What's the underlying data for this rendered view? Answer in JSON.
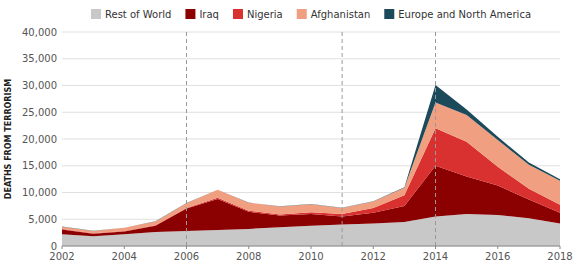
{
  "chart_data": {
    "type": "area",
    "stacked": true,
    "y_label": "DEATHS FROM TERRORISM",
    "x": [
      2002,
      2003,
      2004,
      2005,
      2006,
      2007,
      2008,
      2009,
      2010,
      2011,
      2012,
      2013,
      2014,
      2015,
      2016,
      2017,
      2018
    ],
    "series": [
      {
        "name": "Rest of World",
        "color": "#c8c8c8",
        "values": [
          2200,
          1800,
          2200,
          2600,
          2800,
          3000,
          3200,
          3500,
          3800,
          4000,
          4200,
          4500,
          5500,
          6000,
          5800,
          5200,
          4200
        ]
      },
      {
        "name": "Iraq",
        "color": "#8b0000",
        "values": [
          900,
          500,
          500,
          1200,
          4200,
          5800,
          3200,
          2200,
          2200,
          1500,
          2000,
          3000,
          9500,
          7000,
          5500,
          3500,
          2000
        ]
      },
      {
        "name": "Nigeria",
        "color": "#d93030",
        "values": [
          100,
          100,
          100,
          100,
          100,
          200,
          200,
          200,
          300,
          500,
          900,
          2000,
          7000,
          6500,
          3500,
          2000,
          1500
        ]
      },
      {
        "name": "Afghanistan",
        "color": "#f0a080",
        "values": [
          400,
          400,
          600,
          700,
          900,
          1500,
          1500,
          1500,
          1500,
          1100,
          1200,
          1400,
          4800,
          5000,
          5000,
          4500,
          4500
        ]
      },
      {
        "name": "Europe and North America",
        "color": "#1c4a5a",
        "values": [
          30,
          30,
          30,
          30,
          30,
          30,
          30,
          30,
          30,
          30,
          50,
          100,
          3300,
          1000,
          600,
          400,
          300
        ]
      }
    ],
    "vlines": [
      2006,
      2011,
      2014
    ],
    "xlim": [
      2002,
      2018
    ],
    "xticks": [
      2002,
      2004,
      2006,
      2008,
      2010,
      2012,
      2014,
      2016,
      2018
    ],
    "ylim": [
      0,
      40000
    ],
    "yticks": [
      0,
      {
        "value": 5000,
        "label": "5,000"
      },
      {
        "value": 10000,
        "label": "10,000"
      },
      {
        "value": 15000,
        "label": "15,000"
      },
      {
        "value": 20000,
        "label": "20,000"
      },
      {
        "value": 25000,
        "label": "25,000"
      },
      {
        "value": 30000,
        "label": "30,000"
      },
      {
        "value": 35000,
        "label": "35,000"
      },
      {
        "value": 40000,
        "label": "40,000"
      }
    ],
    "grid": true,
    "legend": "top"
  }
}
